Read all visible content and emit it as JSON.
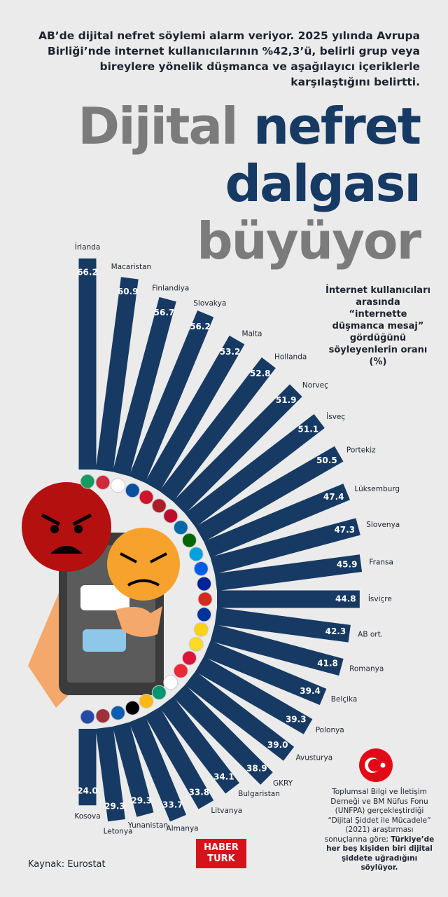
{
  "chart_data": {
    "type": "radial_bar",
    "intro": "AB’de dijital nefret söylemi alarm veriyor. 2025 yılında Avrupa Birliği’nde internet kullanıcılarının %42,3’ü, belirli grup veya bireylere yönelik düşmanca ve aşağılayıcı içeriklerle karşılaştığını belirtti.",
    "title_lines": [
      "Dijital",
      "nefret",
      "dalgası",
      "büyüyor"
    ],
    "annotation": "İnternet kullanıcıları arasında “internette düşmanca mesaj” gördüğünü söyleyenlerin oranı (%)",
    "categories": [
      "İrlanda",
      "Macaristan",
      "Finlandiya",
      "Slovakya",
      "Malta",
      "Hollanda",
      "Norveç",
      "İsveç",
      "Portekiz",
      "Lüksemburg",
      "Slovenya",
      "Fransa",
      "İsviçre",
      "AB ort.",
      "Romanya",
      "Belçika",
      "Polonya",
      "Avusturya",
      "GKRY",
      "Bulgaristan",
      "Litvanya",
      "Almanya",
      "Yunanistan",
      "Letonya",
      "Kosova"
    ],
    "values": [
      66.2,
      60.9,
      56.7,
      56.2,
      53.2,
      52.8,
      51.9,
      51.1,
      50.5,
      47.4,
      47.3,
      45.9,
      44.8,
      42.3,
      41.8,
      39.4,
      39.3,
      39.0,
      38.9,
      34.1,
      33.8,
      33.7,
      29.3,
      29.3,
      24.0
    ],
    "value_labels": [
      "66.2",
      "60.9",
      "56.7",
      "56.2",
      "53.2",
      "52.8",
      "51.9",
      "51.1",
      "50.5",
      "47.4",
      "47.3",
      "45.9",
      "44.8",
      "42.3",
      "41.8",
      "39.4",
      "39.3",
      "39.0",
      "38.9",
      "34.1",
      "33.8",
      "33.7",
      "29.3",
      "29.3",
      "24.0"
    ],
    "color": "#163a63",
    "note": "Toplumsal Bilgi ve İletişim Derneği ve BM Nüfus Fonu (UNFPA) gerçekleştirdiği “Dijital Şiddet ile Mücadele” (2021) araştırması sonuçlarına göre; ",
    "note_bold": "Türkiye’de her beş kişiden biri dijital şiddete uğradığını söylüyor.",
    "source": "Kaynak: Eurostat",
    "logo": [
      "HABER",
      "TURK"
    ]
  }
}
